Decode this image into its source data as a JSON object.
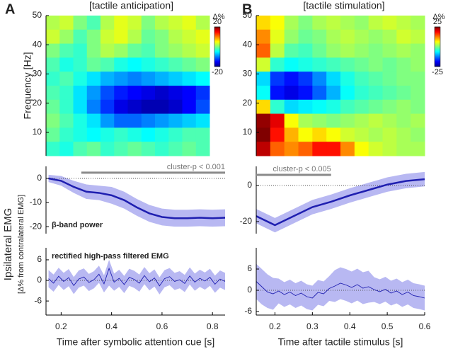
{
  "figure": {
    "emg_ylabel": "Ipsilateral EMG",
    "emg_ylabel_sub": "[Δ% from contralateral EMG]"
  },
  "chart_data": [
    {
      "type": "heatmap",
      "panel": "A",
      "title": "[tactile anticipation]",
      "ylabel": "Frequency [Hz]",
      "ylim": [
        2,
        50
      ],
      "yticks": [
        10,
        20,
        30,
        40,
        50
      ],
      "clim": [
        -20,
        20
      ],
      "cticks": [
        -20,
        20
      ],
      "clabel": "Δ%",
      "z": [
        [
          2,
          3,
          0,
          -2,
          2,
          4,
          3,
          0,
          2,
          3,
          4,
          2
        ],
        [
          3,
          1,
          -2,
          0,
          3,
          4,
          2,
          -1,
          0,
          2,
          3,
          4
        ],
        [
          0,
          -2,
          -3,
          0,
          2,
          1,
          -1,
          -2,
          0,
          1,
          2,
          3
        ],
        [
          -2,
          -4,
          -3,
          -1,
          -2,
          -4,
          -5,
          -4,
          -3,
          -2,
          -1,
          0
        ],
        [
          -3,
          -2,
          -4,
          -6,
          -8,
          -9,
          -10,
          -9,
          -8,
          -7,
          -6,
          -5
        ],
        [
          -2,
          -3,
          -6,
          -9,
          -12,
          -14,
          -15,
          -16,
          -17,
          -16,
          -15,
          -13
        ],
        [
          -1,
          -3,
          -6,
          -10,
          -13,
          -16,
          -17,
          -18,
          -18,
          -17,
          -15,
          -12
        ],
        [
          0,
          -2,
          -4,
          -6,
          -9,
          -11,
          -11,
          -10,
          -9,
          -8,
          -7,
          -6
        ],
        [
          -1,
          -3,
          -4,
          -5,
          -4,
          -3,
          -4,
          -5,
          -4,
          -3,
          -2,
          -2
        ],
        [
          -3,
          -4,
          -2,
          -1,
          -3,
          -2,
          -1,
          -2,
          -3,
          -2,
          -1,
          -2
        ]
      ]
    },
    {
      "type": "heatmap",
      "panel": "B",
      "title": "[tactile stimulation]",
      "ylim": [
        2,
        50
      ],
      "yticks": [
        10,
        20,
        30,
        40,
        50
      ],
      "clim": [
        -25,
        25
      ],
      "cticks": [
        -25,
        25
      ],
      "clabel": "Δ%",
      "z": [
        [
          8,
          6,
          2,
          0,
          2,
          3,
          2,
          1,
          3,
          4,
          3,
          2
        ],
        [
          12,
          5,
          1,
          -1,
          0,
          2,
          3,
          2,
          1,
          2,
          4,
          3
        ],
        [
          14,
          3,
          -2,
          -3,
          -1,
          1,
          2,
          1,
          0,
          1,
          2,
          1
        ],
        [
          4,
          -4,
          -6,
          -5,
          -4,
          -3,
          -2,
          -1,
          0,
          -1,
          0,
          1
        ],
        [
          -8,
          -16,
          -18,
          -16,
          -12,
          -8,
          -5,
          -3,
          -2,
          -1,
          0,
          0
        ],
        [
          -6,
          -18,
          -20,
          -18,
          -14,
          -10,
          -6,
          -4,
          -3,
          -2,
          -1,
          0
        ],
        [
          8,
          -4,
          -8,
          -7,
          -6,
          -5,
          -3,
          -2,
          -1,
          0,
          1,
          0
        ],
        [
          24,
          20,
          6,
          2,
          1,
          0,
          1,
          2,
          3,
          2,
          1,
          2
        ],
        [
          25,
          18,
          10,
          6,
          8,
          6,
          4,
          3,
          2,
          3,
          2,
          1
        ],
        [
          22,
          14,
          12,
          14,
          18,
          18,
          12,
          6,
          4,
          3,
          2,
          2
        ]
      ]
    },
    {
      "type": "line",
      "note": "β-band power",
      "xlim": [
        0.14,
        0.85
      ],
      "ylim": [
        -22.9,
        5
      ],
      "yticks": [
        -20,
        -10,
        0
      ],
      "threshold": {
        "label": "cluster-p < 0.001",
        "x": [
          0.28,
          0.85
        ],
        "y": 2.4
      },
      "x": [
        0.15,
        0.2,
        0.25,
        0.3,
        0.35,
        0.4,
        0.45,
        0.5,
        0.55,
        0.6,
        0.65,
        0.7,
        0.75,
        0.8,
        0.85
      ],
      "values": [
        0,
        -1,
        -3.5,
        -5.5,
        -6,
        -7,
        -9,
        -12,
        -14.5,
        -16,
        -16.5,
        -16.5,
        -16.3,
        -16.5,
        -16.3
      ],
      "upper": [
        1.5,
        1,
        -1,
        -2.5,
        -3,
        -3.5,
        -5.5,
        -8.5,
        -11,
        -12.5,
        -13,
        -13,
        -12.8,
        -13,
        -12.8
      ],
      "lower": [
        -1.5,
        -3,
        -6,
        -8.5,
        -9,
        -10.5,
        -12.5,
        -15.5,
        -18,
        -19.5,
        -20,
        -20,
        -19.8,
        -20,
        -19.8
      ]
    },
    {
      "type": "line",
      "xlim": [
        0.15,
        0.6
      ],
      "ylim": [
        -26.7,
        10.6
      ],
      "yticks": [
        -20,
        0
      ],
      "threshold": {
        "label": "cluster-p < 0.005",
        "x": [
          0.15,
          0.35
        ],
        "y": 5.9
      },
      "x": [
        0.15,
        0.2,
        0.25,
        0.3,
        0.35,
        0.4,
        0.45,
        0.5,
        0.55,
        0.6
      ],
      "values": [
        -17,
        -22,
        -17,
        -12,
        -9,
        -5.5,
        -2.5,
        0.5,
        2.5,
        3.5
      ],
      "upper": [
        -13,
        -18,
        -13,
        -8,
        -5,
        -1.5,
        1.5,
        4.5,
        6.5,
        7.5
      ],
      "lower": [
        -21,
        -26,
        -21,
        -16,
        -13,
        -9.5,
        -6.5,
        -3.5,
        -1.5,
        -0.5
      ]
    },
    {
      "type": "emg",
      "note": "rectified high-pass filtered EMG",
      "xlabel": "Time after symbolic attention cue [s]",
      "xlim": [
        0.14,
        0.85
      ],
      "ylim": [
        -10.1,
        9.5
      ],
      "xticks": [
        0.2,
        0.4,
        0.6,
        0.8
      ],
      "yticks": [
        -6,
        0,
        6
      ],
      "x": [
        0.15,
        0.17,
        0.19,
        0.21,
        0.23,
        0.25,
        0.27,
        0.29,
        0.31,
        0.33,
        0.35,
        0.37,
        0.39,
        0.41,
        0.43,
        0.45,
        0.47,
        0.49,
        0.51,
        0.53,
        0.55,
        0.57,
        0.59,
        0.61,
        0.63,
        0.65,
        0.67,
        0.69,
        0.71,
        0.73,
        0.75,
        0.77,
        0.79,
        0.81,
        0.83,
        0.85
      ],
      "values": [
        0.5,
        -0.8,
        1.2,
        -0.3,
        0.8,
        -1.5,
        0.4,
        1.0,
        -0.6,
        0.2,
        1.8,
        -1.0,
        3.5,
        -0.5,
        0.6,
        -1.2,
        0.9,
        0.3,
        -0.8,
        1.4,
        -0.4,
        0.7,
        -1.6,
        0.5,
        1.1,
        -0.3,
        0.2,
        -0.9,
        1.3,
        -0.5,
        0.6,
        -0.2,
        0.9,
        -1.1,
        0.4,
        -0.3
      ],
      "upper": [
        3.0,
        1.7,
        3.7,
        2.2,
        3.3,
        1.0,
        2.9,
        3.5,
        1.9,
        2.7,
        4.3,
        1.5,
        6.0,
        2.0,
        3.1,
        1.3,
        3.4,
        2.8,
        1.7,
        3.9,
        2.1,
        3.2,
        0.9,
        3.0,
        3.6,
        2.2,
        2.7,
        1.6,
        3.8,
        2.0,
        3.1,
        2.3,
        3.4,
        1.4,
        2.9,
        2.2
      ],
      "lower": [
        -2.0,
        -3.3,
        -1.3,
        -2.8,
        -1.7,
        -4.0,
        -2.1,
        -1.5,
        -3.1,
        -2.3,
        -0.7,
        -3.5,
        -1.5,
        -3.0,
        -1.9,
        -3.7,
        -1.6,
        -2.2,
        -3.3,
        -1.1,
        -2.9,
        -1.8,
        -4.1,
        -2.0,
        -1.4,
        -2.8,
        -2.3,
        -3.4,
        -1.2,
        -3.0,
        -1.9,
        -2.7,
        -1.6,
        -3.6,
        -2.1,
        -2.8
      ]
    },
    {
      "type": "emg",
      "xlabel": "Time after tactile stimulus [s]",
      "xlim": [
        0.15,
        0.6
      ],
      "ylim": [
        -7,
        12
      ],
      "xticks": [
        0.2,
        0.3,
        0.4,
        0.5,
        0.6
      ],
      "yticks": [
        -6,
        0,
        6
      ],
      "x": [
        0.15,
        0.165,
        0.18,
        0.195,
        0.21,
        0.225,
        0.24,
        0.255,
        0.27,
        0.285,
        0.3,
        0.315,
        0.33,
        0.345,
        0.36,
        0.375,
        0.39,
        0.405,
        0.42,
        0.435,
        0.45,
        0.465,
        0.48,
        0.495,
        0.51,
        0.525,
        0.54,
        0.555,
        0.57,
        0.585,
        0.6
      ],
      "values": [
        2.5,
        1.0,
        -0.5,
        -1.0,
        -0.2,
        -1.2,
        -0.5,
        -1.5,
        -0.8,
        -1.8,
        -2.2,
        -0.6,
        -1.0,
        0.5,
        1.2,
        2.0,
        1.5,
        0.8,
        1.6,
        0.6,
        1.0,
        0.2,
        -0.4,
        0.3,
        -0.8,
        -0.2,
        -1.2,
        -0.5,
        -1.5,
        -1.8,
        -2.2
      ],
      "upper": [
        7.5,
        6.0,
        4.5,
        3.5,
        3.3,
        2.3,
        3.0,
        2.0,
        2.7,
        1.7,
        1.3,
        2.9,
        2.5,
        4.0,
        5.7,
        6.5,
        6.0,
        5.3,
        6.1,
        5.1,
        5.5,
        3.7,
        3.1,
        3.8,
        2.7,
        3.3,
        2.3,
        3.0,
        2.0,
        1.7,
        1.3
      ],
      "lower": [
        -2.5,
        -4.0,
        -5.0,
        -5.5,
        -3.7,
        -4.7,
        -4.0,
        -5.0,
        -4.3,
        -5.3,
        -5.7,
        -4.1,
        -4.5,
        -3.0,
        -3.3,
        -2.5,
        -3.0,
        -3.7,
        -2.9,
        -3.9,
        -3.5,
        -3.3,
        -3.9,
        -3.2,
        -4.3,
        -3.7,
        -4.7,
        -4.0,
        -5.0,
        -5.3,
        -5.7
      ]
    }
  ]
}
